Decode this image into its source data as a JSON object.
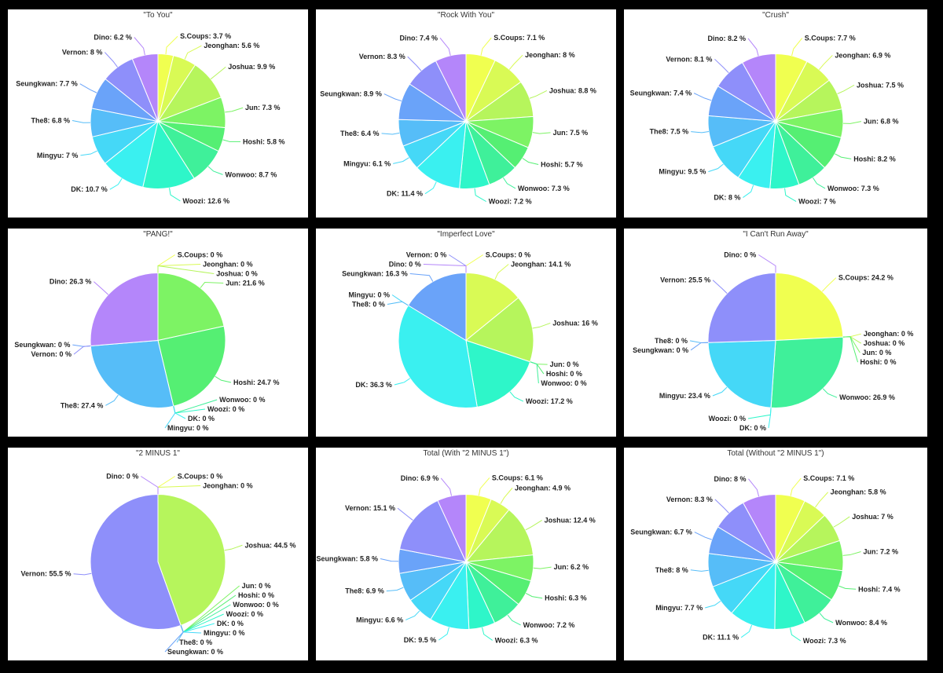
{
  "members": [
    "S.Coups",
    "Jeonghan",
    "Joshua",
    "Jun",
    "Hoshi",
    "Wonwoo",
    "Woozi",
    "DK",
    "Mingyu",
    "The8",
    "Seungkwan",
    "Vernon",
    "Dino"
  ],
  "colors": [
    "#f0ff50",
    "#d9fa55",
    "#b6f55c",
    "#7df364",
    "#55ef73",
    "#3ff09a",
    "#2ef6c9",
    "#3af0f0",
    "#45d8f7",
    "#56bdf8",
    "#6aa3f9",
    "#8e8ffa",
    "#b486fa"
  ],
  "chart_data": [
    {
      "type": "pie",
      "title": "\"To You\"",
      "values": [
        3.7,
        5.6,
        9.9,
        7.3,
        5.8,
        8.7,
        12.6,
        10.7,
        7,
        6.8,
        7.7,
        8,
        6.2
      ]
    },
    {
      "type": "pie",
      "title": "\"Rock With You\"",
      "values": [
        7.1,
        8,
        8.8,
        7.5,
        5.7,
        7.3,
        7.2,
        11.4,
        6.1,
        6.4,
        8.9,
        8.3,
        7.4
      ]
    },
    {
      "type": "pie",
      "title": "\"Crush\"",
      "values": [
        7.7,
        6.9,
        7.5,
        6.8,
        8.2,
        7.3,
        7,
        8,
        9.5,
        7.5,
        7.4,
        8.1,
        8.2
      ]
    },
    {
      "type": "pie",
      "title": "\"PANG!\"",
      "values": [
        0,
        0,
        0,
        21.6,
        24.7,
        0,
        0,
        0,
        0,
        27.4,
        0,
        0,
        26.3
      ]
    },
    {
      "type": "pie",
      "title": "\"Imperfect Love\"",
      "values": [
        0,
        14.1,
        16,
        0,
        0,
        0,
        17.2,
        36.3,
        0,
        0,
        16.3,
        0,
        0
      ]
    },
    {
      "type": "pie",
      "title": "\"I Can't Run Away\"",
      "values": [
        24.2,
        0,
        0,
        0,
        0,
        26.9,
        0,
        0,
        23.4,
        0,
        0,
        25.5,
        0
      ]
    },
    {
      "type": "pie",
      "title": "\"2 MINUS 1\"",
      "values": [
        0,
        0,
        44.5,
        0,
        0,
        0,
        0,
        0,
        0,
        0,
        0,
        55.5,
        0
      ]
    },
    {
      "type": "pie",
      "title": "Total (With \"2 MINUS 1\")",
      "values": [
        6.1,
        4.9,
        12.4,
        6.2,
        6.3,
        7.2,
        6.3,
        9.5,
        6.6,
        6.9,
        5.8,
        15.1,
        6.9
      ]
    },
    {
      "type": "pie",
      "title": "Total (Without \"2 MINUS 1\")",
      "values": [
        7.1,
        5.8,
        7,
        7.2,
        7.4,
        8.4,
        7.3,
        11.1,
        7.7,
        8,
        6.7,
        8.3,
        8
      ]
    }
  ]
}
